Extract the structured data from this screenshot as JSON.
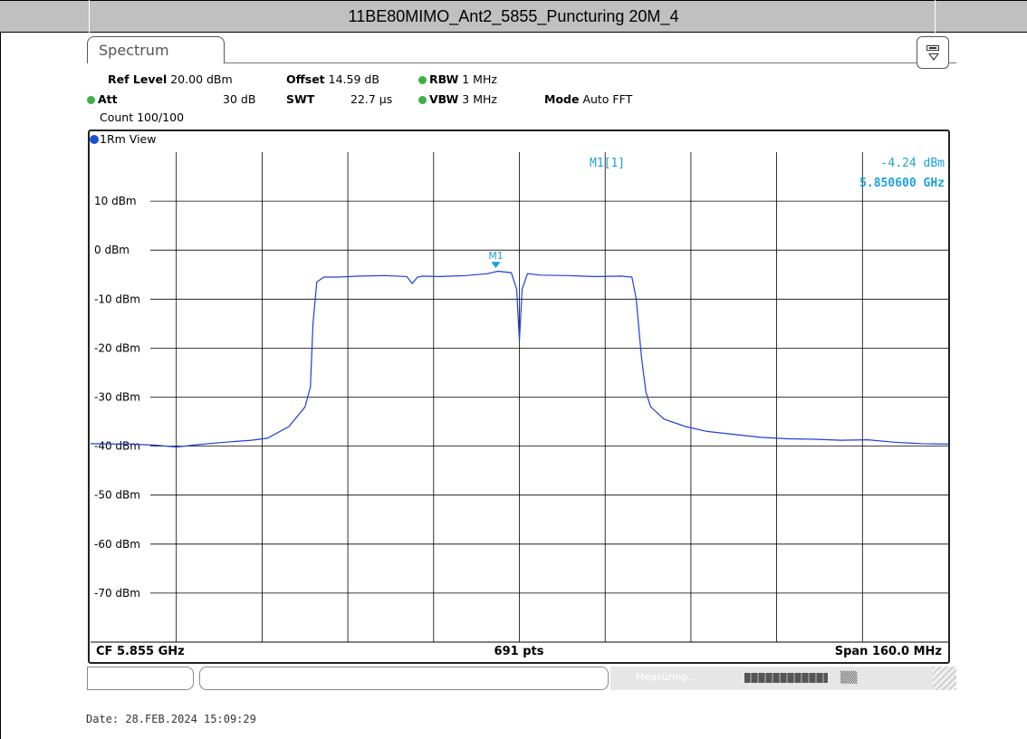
{
  "title": "11BE80MIMO_Ant2_5855_Puncturing 20M_4",
  "tab": {
    "label": "Spectrum"
  },
  "settings": {
    "ref_level_label": "Ref Level",
    "ref_level_value": "20.00 dBm",
    "offset_label": "Offset",
    "offset_value": "14.59 dB",
    "rbw_label": "RBW",
    "rbw_value": "1 MHz",
    "att_label": "Att",
    "att_value": "30 dB",
    "swt_label": "SWT",
    "swt_value": "22.7 µs",
    "vbw_label": "VBW",
    "vbw_value": "3 MHz",
    "mode_label": "Mode",
    "mode_value": "Auto FFT",
    "count": "Count 100/100"
  },
  "view": {
    "label": "1Rm View"
  },
  "marker": {
    "label": "M1[1]",
    "level": "-4.24 dBm",
    "freq": "5.850600 GHz",
    "tag": "M1"
  },
  "bottom": {
    "cf": "CF 5.855 GHz",
    "pts": "691 pts",
    "span": "Span 160.0 MHz"
  },
  "status": {
    "measuring": "Measuring..."
  },
  "date": "Date: 28.FEB.2024  15:09:29",
  "colors": {
    "trace": "#1f3fd8",
    "marker": "#1ea0e0",
    "grid": "#000000"
  },
  "chart_data": {
    "type": "line",
    "xlim": [
      5775,
      5935
    ],
    "ylim": [
      -80,
      20
    ],
    "ytick_labels": [
      "10 dBm",
      "0 dBm",
      "-10 dBm",
      "-20 dBm",
      "-30 dBm",
      "-40 dBm",
      "-50 dBm",
      "-60 dBm",
      "-70 dBm"
    ],
    "yticks": [
      10,
      0,
      -10,
      -20,
      -30,
      -40,
      -50,
      -60,
      -70
    ],
    "grid": true,
    "series": [
      {
        "x": [
          5775,
          5782,
          5787,
          5791,
          5795,
          5799,
          5805,
          5808,
          5812,
          5815,
          5816,
          5816.5,
          5817.2,
          5818.5,
          5821,
          5825,
          5830,
          5834,
          5835,
          5836,
          5837,
          5840,
          5845,
          5849,
          5851,
          5853.5,
          5854.5,
          5855,
          5855.5,
          5856.5,
          5859,
          5864,
          5869,
          5874,
          5876,
          5876.8,
          5877.8,
          5878.6,
          5879.5,
          5882,
          5886,
          5890,
          5895,
          5900,
          5905,
          5910,
          5915,
          5920,
          5925,
          5930,
          5935
        ],
        "y": [
          -39.5,
          -39.6,
          -39.8,
          -40.2,
          -39.7,
          -39.3,
          -38.8,
          -38.4,
          -36,
          -32,
          -28,
          -15,
          -6.5,
          -5.5,
          -5.5,
          -5.3,
          -5.2,
          -5.4,
          -6.8,
          -5.5,
          -5.3,
          -5.4,
          -5.2,
          -4.8,
          -4.3,
          -4.6,
          -8,
          -18.5,
          -8,
          -4.8,
          -5.1,
          -5.2,
          -5.4,
          -5.3,
          -5.5,
          -10,
          -22,
          -29,
          -32,
          -34.5,
          -36,
          -37,
          -37.6,
          -38.2,
          -38.5,
          -38.6,
          -38.8,
          -38.7,
          -39.2,
          -39.5,
          -39.6
        ]
      }
    ],
    "markers": [
      {
        "name": "M1",
        "x": 5850.6,
        "y": -4.24
      }
    ]
  }
}
